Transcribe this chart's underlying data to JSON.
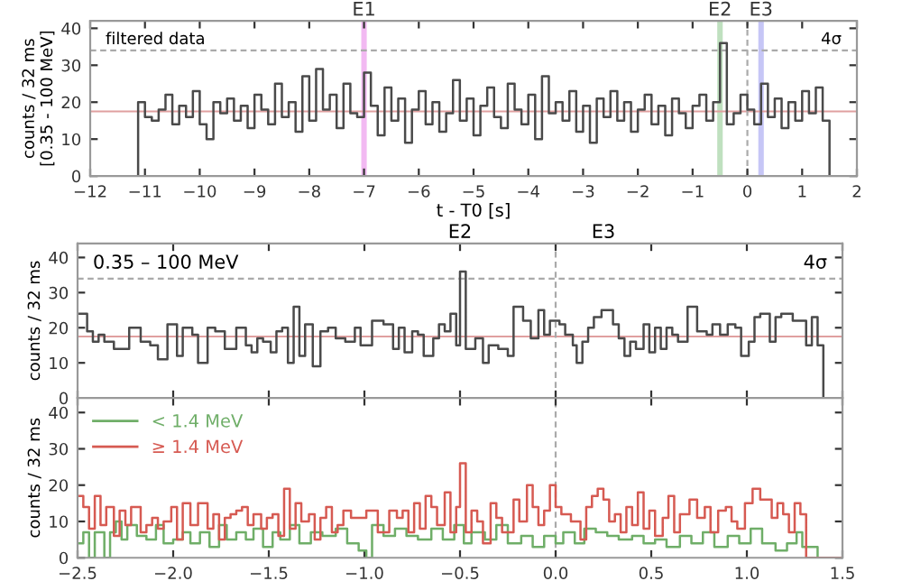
{
  "chart_data": [
    {
      "type": "step",
      "xlabel": "t - T0 [s]",
      "ylabel": "counts / 32 ms\n[0.35 - 100 MeV]",
      "annotations": [
        "filtered data",
        "4σ"
      ],
      "xlim": [
        -12,
        2
      ],
      "ylim": [
        0,
        42
      ],
      "xticks": [
        {
          "value": -12,
          "label": "−12"
        },
        {
          "value": -11,
          "label": "−11"
        },
        {
          "value": -10,
          "label": "−10"
        },
        {
          "value": -9,
          "label": "−9"
        },
        {
          "value": -8,
          "label": "−8"
        },
        {
          "value": -7,
          "label": "−7"
        },
        {
          "value": -6,
          "label": "−6"
        },
        {
          "value": -5,
          "label": "−5"
        },
        {
          "value": -4,
          "label": "−4"
        },
        {
          "value": -3,
          "label": "−3"
        },
        {
          "value": -2,
          "label": "−2"
        },
        {
          "value": -1,
          "label": "−1"
        },
        0,
        1,
        2
      ],
      "yticks": [
        0,
        10,
        20,
        30,
        40
      ],
      "ref_lines": [
        {
          "axis": "y",
          "value": 34,
          "color": "#aaaaaa",
          "line_style": "dashed"
        },
        {
          "axis": "y",
          "value": 17.5,
          "color": "#e0a0a0",
          "line_style": "solid"
        },
        {
          "axis": "x",
          "value": 0,
          "color": "#aaaaaa",
          "line_style": "dashed"
        }
      ],
      "bands": [
        {
          "axis": "x",
          "from": -7.05,
          "to": -6.95,
          "label": "E1",
          "color": "#e98be9"
        },
        {
          "axis": "x",
          "from": -0.55,
          "to": -0.45,
          "label": "E2",
          "color": "#95cc95"
        },
        {
          "axis": "x",
          "from": 0.2,
          "to": 0.3,
          "label": "E3",
          "color": "#a0a0f0"
        }
      ],
      "series": [
        {
          "color": "#4a4a4a",
          "x": [
            -12,
            -11.125,
            -11.0,
            -10.875,
            -10.75,
            -10.625,
            -10.5,
            -10.375,
            -10.25,
            -10.125,
            -10.0,
            -9.875,
            -9.75,
            -9.625,
            -9.5,
            -9.375,
            -9.25,
            -9.125,
            -9.0,
            -8.875,
            -8.75,
            -8.625,
            -8.5,
            -8.375,
            -8.25,
            -8.125,
            -8.0,
            -7.875,
            -7.75,
            -7.625,
            -7.5,
            -7.375,
            -7.25,
            -7.125,
            -7.0,
            -6.875,
            -6.75,
            -6.625,
            -6.5,
            -6.375,
            -6.25,
            -6.125,
            -6.0,
            -5.875,
            -5.75,
            -5.625,
            -5.5,
            -5.375,
            -5.25,
            -5.125,
            -5.0,
            -4.875,
            -4.75,
            -4.625,
            -4.5,
            -4.375,
            -4.25,
            -4.125,
            -4.0,
            -3.875,
            -3.75,
            -3.625,
            -3.5,
            -3.375,
            -3.25,
            -3.125,
            -3.0,
            -2.875,
            -2.75,
            -2.625,
            -2.5,
            -2.375,
            -2.25,
            -2.125,
            -2.0,
            -1.875,
            -1.75,
            -1.625,
            -1.5,
            -1.375,
            -1.25,
            -1.125,
            -1.0,
            -0.875,
            -0.75,
            -0.625,
            -0.5,
            -0.375,
            -0.25,
            -0.125,
            0.0,
            0.125,
            0.25,
            0.375,
            0.5,
            0.625,
            0.75,
            0.875,
            1.0,
            1.125,
            1.25,
            1.375,
            1.5
          ],
          "values": [
            0,
            20,
            16,
            15,
            18,
            22,
            14,
            19,
            16,
            23,
            14,
            10,
            20,
            17,
            21,
            15,
            19,
            13,
            22,
            18,
            14,
            25,
            16,
            20,
            12,
            27,
            15,
            29,
            18,
            22,
            13,
            25,
            17,
            16,
            28,
            19,
            11,
            24,
            15,
            21,
            9,
            18,
            23,
            14,
            20,
            12,
            17,
            26,
            15,
            21,
            11,
            19,
            24,
            16,
            13,
            25,
            18,
            14,
            22,
            10,
            27,
            17,
            20,
            15,
            23,
            12,
            19,
            9,
            21,
            16,
            23,
            15,
            20,
            12,
            18,
            22,
            14,
            19,
            11,
            21,
            17,
            13,
            19,
            22,
            15,
            20,
            36,
            14,
            17,
            22,
            18,
            14,
            25,
            16,
            21,
            13,
            20,
            15,
            23,
            17,
            24,
            15,
            0
          ]
        }
      ]
    },
    {
      "type": "step",
      "ylabel": "counts / 32 ms",
      "annotations": [
        "0.35 – 100 MeV",
        "4σ",
        "E2",
        "E3"
      ],
      "xlim": [
        -2.5,
        1.5
      ],
      "ylim": [
        0,
        44
      ],
      "yticks": [
        0,
        10,
        20,
        30,
        40
      ],
      "tick_labels": "y",
      "xticks": [
        -2.5,
        -2.0,
        -1.5,
        -1.0,
        -0.5,
        0.0,
        0.5,
        1.0,
        1.5
      ],
      "ref_lines": [
        {
          "axis": "y",
          "value": 34,
          "color": "#aaaaaa",
          "line_style": "dashed"
        },
        {
          "axis": "y",
          "value": 17.5,
          "color": "#e0a0a0",
          "line_style": "solid"
        },
        {
          "axis": "x",
          "value": 0,
          "color": "#aaaaaa",
          "line_style": "dashed"
        }
      ],
      "series": [
        {
          "color": "#4a4a4a",
          "x": [
            -2.5,
            -2.45,
            -2.42,
            -2.39,
            -2.36,
            -2.31,
            -2.23,
            -2.17,
            -2.12,
            -2.08,
            -2.03,
            -1.98,
            -1.95,
            -1.9,
            -1.87,
            -1.82,
            -1.78,
            -1.73,
            -1.67,
            -1.62,
            -1.59,
            -1.56,
            -1.53,
            -1.49,
            -1.46,
            -1.43,
            -1.4,
            -1.37,
            -1.34,
            -1.31,
            -1.27,
            -1.23,
            -1.19,
            -1.15,
            -1.1,
            -1.05,
            -1.02,
            -0.96,
            -0.9,
            -0.85,
            -0.82,
            -0.79,
            -0.75,
            -0.72,
            -0.69,
            -0.64,
            -0.61,
            -0.58,
            -0.55,
            -0.52,
            -0.5,
            -0.47,
            -0.42,
            -0.38,
            -0.35,
            -0.3,
            -0.25,
            -0.22,
            -0.17,
            -0.13,
            -0.09,
            -0.06,
            -0.03,
            0.02,
            0.05,
            0.09,
            0.11,
            0.14,
            0.17,
            0.2,
            0.24,
            0.3,
            0.33,
            0.36,
            0.39,
            0.42,
            0.46,
            0.49,
            0.52,
            0.55,
            0.58,
            0.61,
            0.64,
            0.69,
            0.74,
            0.79,
            0.82,
            0.86,
            0.9,
            0.94,
            0.97,
            1.01,
            1.04,
            1.07,
            1.12,
            1.15,
            1.18,
            1.24,
            1.31,
            1.34,
            1.37,
            1.4,
            1.5
          ],
          "values": [
            24,
            19,
            16,
            18,
            16,
            14,
            20,
            16,
            15,
            11,
            21,
            12,
            20,
            18,
            10,
            20,
            19,
            14,
            20,
            15,
            13,
            17,
            16,
            13,
            19,
            20,
            10,
            26,
            12,
            21,
            9,
            19,
            20,
            17,
            16,
            20,
            15,
            22,
            21,
            14,
            20,
            13,
            19,
            18,
            12,
            17,
            21,
            19,
            24,
            15,
            36,
            14,
            17,
            10,
            15,
            14,
            12,
            26,
            22,
            17,
            25,
            18,
            22,
            21,
            18,
            15,
            10,
            16,
            20,
            23,
            25,
            21,
            17,
            12,
            16,
            14,
            21,
            13,
            20,
            14,
            20,
            18,
            16,
            26,
            19,
            18,
            21,
            18,
            21,
            20,
            12,
            16,
            23,
            24,
            16,
            23,
            24,
            22,
            15,
            23,
            15,
            0,
            0
          ]
        }
      ]
    },
    {
      "type": "step",
      "ylabel": "counts / 32 ms",
      "legend": "top left",
      "xlim": [
        -2.5,
        1.5
      ],
      "ylim": [
        0,
        44
      ],
      "yticks": [
        0,
        10,
        20,
        30,
        40
      ],
      "xticks": [
        {
          "value": -2.5,
          "label": "−2.5"
        },
        {
          "value": -2.0,
          "label": "−2.0"
        },
        {
          "value": -1.5,
          "label": "−1.5"
        },
        {
          "value": -1.0,
          "label": "−1.0"
        },
        {
          "value": -0.5,
          "label": "−0.5"
        },
        {
          "value": 0.0,
          "label": "0.0"
        },
        {
          "value": 0.5,
          "label": "0.5"
        },
        {
          "value": 1.0,
          "label": "1.0"
        },
        {
          "value": 1.5,
          "label": "1.5"
        }
      ],
      "ref_lines": [
        {
          "axis": "x",
          "value": 0,
          "color": "#aaaaaa",
          "line_style": "dashed"
        }
      ],
      "series": [
        {
          "name": "< 1.4 MeV",
          "color": "#6fae68",
          "x": [
            -2.5,
            -2.47,
            -2.44,
            -2.41,
            -2.36,
            -2.33,
            -2.3,
            -2.27,
            -2.24,
            -2.19,
            -2.14,
            -2.09,
            -2.05,
            -2.0,
            -1.95,
            -1.91,
            -1.86,
            -1.81,
            -1.76,
            -1.72,
            -1.67,
            -1.62,
            -1.58,
            -1.53,
            -1.48,
            -1.44,
            -1.39,
            -1.34,
            -1.28,
            -1.22,
            -1.15,
            -1.09,
            -1.03,
            -0.99,
            -0.96,
            -0.9,
            -0.84,
            -0.78,
            -0.72,
            -0.65,
            -0.59,
            -0.53,
            -0.48,
            -0.44,
            -0.37,
            -0.31,
            -0.25,
            -0.18,
            -0.12,
            -0.06,
            0.0,
            0.04,
            0.1,
            0.15,
            0.21,
            0.27,
            0.33,
            0.4,
            0.46,
            0.52,
            0.58,
            0.65,
            0.71,
            0.77,
            0.83,
            0.9,
            0.96,
            1.02,
            1.08,
            1.15,
            1.21,
            1.26,
            1.29,
            1.37,
            1.5
          ],
          "values": [
            4,
            7,
            0,
            7,
            0,
            7,
            10,
            5,
            9,
            6,
            5,
            9,
            4,
            5,
            7,
            4,
            7,
            3,
            9,
            5,
            7,
            5,
            8,
            3,
            7,
            5,
            9,
            4,
            7,
            6,
            8,
            4,
            2,
            0,
            9,
            6,
            8,
            6,
            5,
            8,
            5,
            9,
            4,
            7,
            5,
            9,
            4,
            6,
            3,
            6,
            4,
            7,
            4,
            8,
            7,
            6,
            5,
            6,
            4,
            5,
            3,
            6,
            4,
            7,
            3,
            6,
            4,
            8,
            4,
            2,
            4,
            7,
            3,
            0,
            0
          ]
        },
        {
          "name": "≥ 1.4 MeV",
          "color": "#d65a52",
          "x": [
            -2.5,
            -2.47,
            -2.44,
            -2.41,
            -2.38,
            -2.35,
            -2.31,
            -2.28,
            -2.25,
            -2.22,
            -2.17,
            -2.14,
            -2.11,
            -2.08,
            -2.05,
            -2.01,
            -1.98,
            -1.95,
            -1.91,
            -1.87,
            -1.82,
            -1.79,
            -1.76,
            -1.73,
            -1.7,
            -1.67,
            -1.64,
            -1.61,
            -1.58,
            -1.54,
            -1.51,
            -1.48,
            -1.45,
            -1.42,
            -1.39,
            -1.36,
            -1.33,
            -1.29,
            -1.26,
            -1.23,
            -1.2,
            -1.17,
            -1.14,
            -1.11,
            -1.07,
            -0.99,
            -0.93,
            -0.87,
            -0.83,
            -0.8,
            -0.77,
            -0.74,
            -0.71,
            -0.68,
            -0.65,
            -0.62,
            -0.58,
            -0.55,
            -0.52,
            -0.5,
            -0.47,
            -0.44,
            -0.41,
            -0.38,
            -0.34,
            -0.31,
            -0.28,
            -0.22,
            -0.19,
            -0.15,
            -0.12,
            -0.09,
            -0.06,
            -0.03,
            0.0,
            0.03,
            0.08,
            0.13,
            0.16,
            0.19,
            0.22,
            0.25,
            0.28,
            0.31,
            0.34,
            0.37,
            0.4,
            0.43,
            0.46,
            0.49,
            0.52,
            0.56,
            0.59,
            0.62,
            0.65,
            0.7,
            0.74,
            0.78,
            0.81,
            0.85,
            0.89,
            0.92,
            0.95,
            0.99,
            1.03,
            1.07,
            1.13,
            1.16,
            1.19,
            1.22,
            1.25,
            1.28,
            1.31,
            1.4,
            1.5
          ],
          "values": [
            17,
            14,
            8,
            17,
            9,
            14,
            6,
            13,
            9,
            14,
            7,
            9,
            11,
            8,
            10,
            14,
            5,
            15,
            9,
            15,
            8,
            12,
            5,
            11,
            12,
            13,
            14,
            9,
            12,
            8,
            11,
            12,
            6,
            19,
            8,
            15,
            10,
            12,
            5,
            11,
            14,
            7,
            9,
            13,
            11,
            13,
            7,
            13,
            11,
            13,
            7,
            15,
            8,
            17,
            14,
            9,
            18,
            7,
            14,
            26,
            7,
            13,
            10,
            4,
            15,
            11,
            7,
            16,
            10,
            20,
            14,
            9,
            13,
            20,
            14,
            12,
            10,
            5,
            14,
            17,
            19,
            16,
            10,
            12,
            7,
            14,
            9,
            18,
            8,
            13,
            6,
            11,
            17,
            7,
            12,
            16,
            11,
            14,
            7,
            13,
            14,
            10,
            8,
            15,
            19,
            16,
            11,
            15,
            12,
            7,
            15,
            12,
            0,
            0,
            0
          ]
        }
      ]
    }
  ]
}
